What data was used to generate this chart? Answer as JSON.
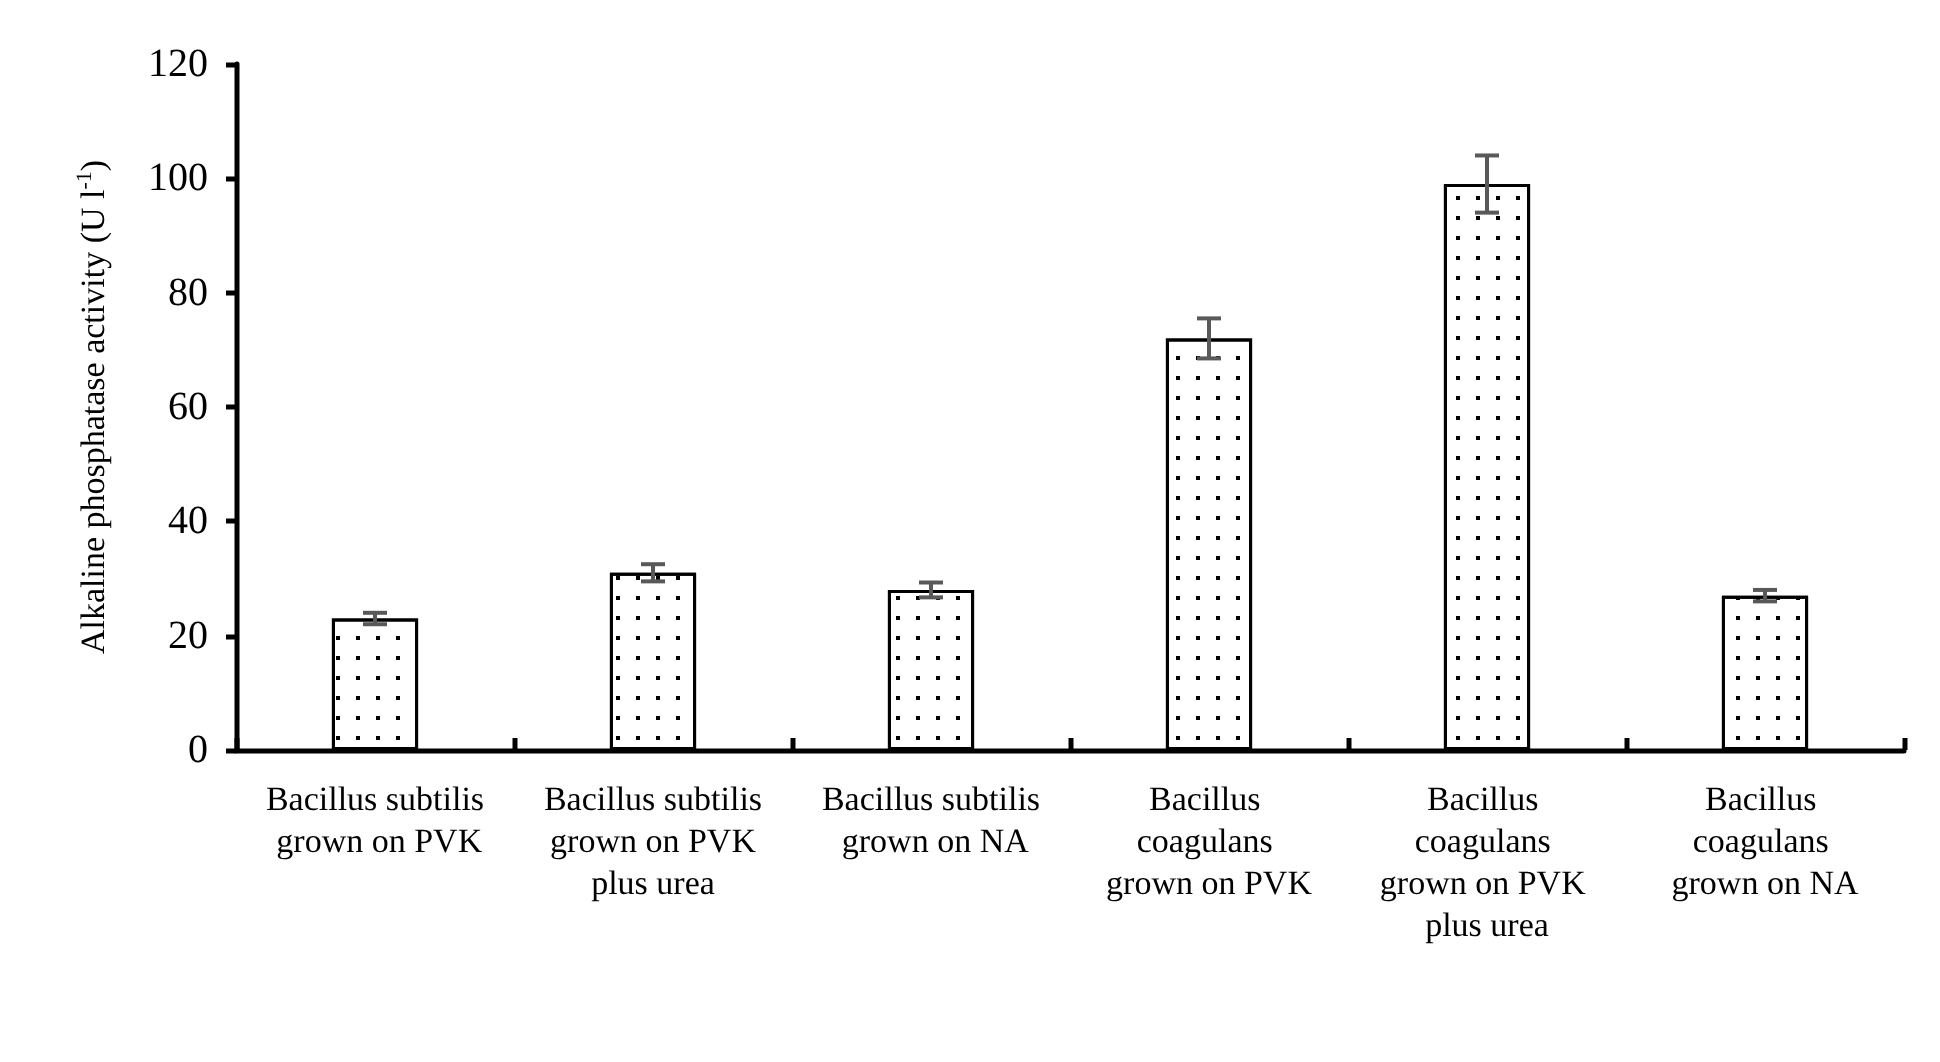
{
  "chart_data": {
    "type": "bar",
    "ylabel": "Alkaline phosphatase activity (U l$^{-1}$)",
    "categories": [
      "Bacillus subtilis grown on PVK",
      "Bacillus subtilis grown on PVK plus urea",
      "Bacillus subtilis grown on NA",
      "Bacillus coagulans grown on PVK",
      "Bacillus coagulans grown on PVK plus urea",
      "Bacillus coagulans grown on NA"
    ],
    "values": [
      23,
      31,
      28,
      72,
      99,
      27
    ],
    "errors": [
      1,
      1.5,
      1.3,
      3.5,
      5,
      1
    ],
    "color": "#ffffff",
    "ylim": [
      0,
      120
    ],
    "yticks": [
      0,
      20,
      40,
      60,
      80,
      100,
      120
    ]
  }
}
